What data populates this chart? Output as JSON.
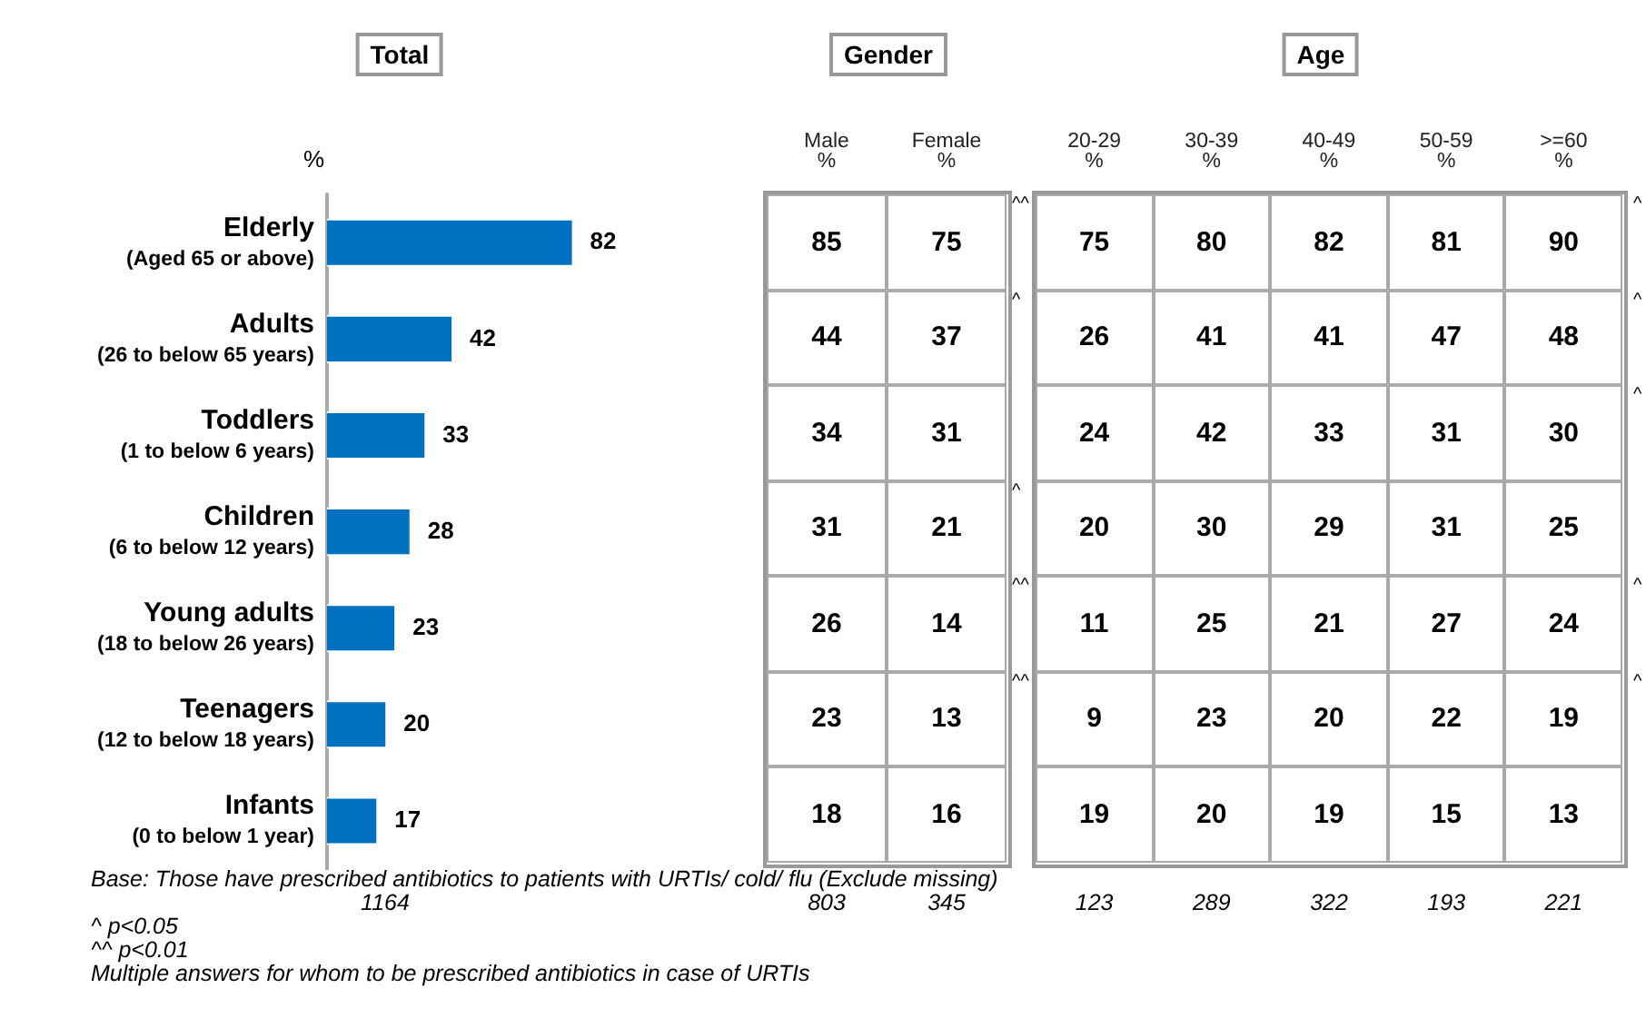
{
  "chart_data": [
    {
      "type": "bar",
      "orientation": "horizontal",
      "title": "Total",
      "xlabel": "%",
      "categories": [
        "Elderly\n(Aged 65 or above)",
        "Adults\n(26 to below 65 years)",
        "Toddlers\n(1 to below 6 years)",
        "Children\n(6 to below 12 years)",
        "Young adults\n(18 to below 26 years)",
        "Teenagers\n(12 to below 18 years)",
        "Infants\n(0 to below 1 year)"
      ],
      "values": [
        82,
        42,
        33,
        28,
        23,
        20,
        17
      ],
      "color": "#0070c0",
      "data_labels": true,
      "legend": false,
      "annotations": [
        "Base: Those have prescribed antibiotics to patients with URTIs/ cold/ flu (Exclude missing)",
        "1164",
        "^ p<0.05",
        "^^ p<0.01",
        "Multiple answers for whom to be prescribed antibiotics in case of URTIs"
      ]
    },
    {
      "type": "heatmap",
      "title": "Gender",
      "categories": [
        "Male\n%",
        "Female\n%"
      ],
      "y_categories": [
        null,
        null,
        null,
        null,
        null,
        null,
        null
      ],
      "y2_categories": [
        "^^",
        "^",
        null,
        "^",
        "^^",
        "^^",
        null
      ],
      "data_labels": true,
      "cells": [
        [
          85,
          75
        ],
        [
          44,
          37
        ],
        [
          34,
          31
        ],
        [
          31,
          21
        ],
        [
          26,
          14
        ],
        [
          23,
          13
        ],
        [
          18,
          16
        ]
      ],
      "annotations": [
        "803",
        "345"
      ]
    },
    {
      "type": "heatmap",
      "title": "Age",
      "categories": [
        "20-29\n%",
        "30-39\n%",
        "40-49\n%",
        "50-59\n%",
        ">=60\n%"
      ],
      "y_categories": [
        null,
        null,
        null,
        null,
        null,
        null,
        null
      ],
      "y2_categories": [
        "^",
        "^",
        "^",
        null,
        "^",
        "^",
        null
      ],
      "data_labels": true,
      "cells": [
        [
          75,
          80,
          82,
          81,
          90
        ],
        [
          26,
          41,
          41,
          47,
          48
        ],
        [
          24,
          42,
          33,
          31,
          30
        ],
        [
          20,
          30,
          29,
          31,
          25
        ],
        [
          11,
          25,
          21,
          27,
          24
        ],
        [
          9,
          23,
          20,
          22,
          19
        ],
        [
          19,
          20,
          19,
          15,
          13
        ]
      ],
      "annotations": [
        "123",
        "289",
        "322",
        "193",
        "221"
      ]
    }
  ]
}
